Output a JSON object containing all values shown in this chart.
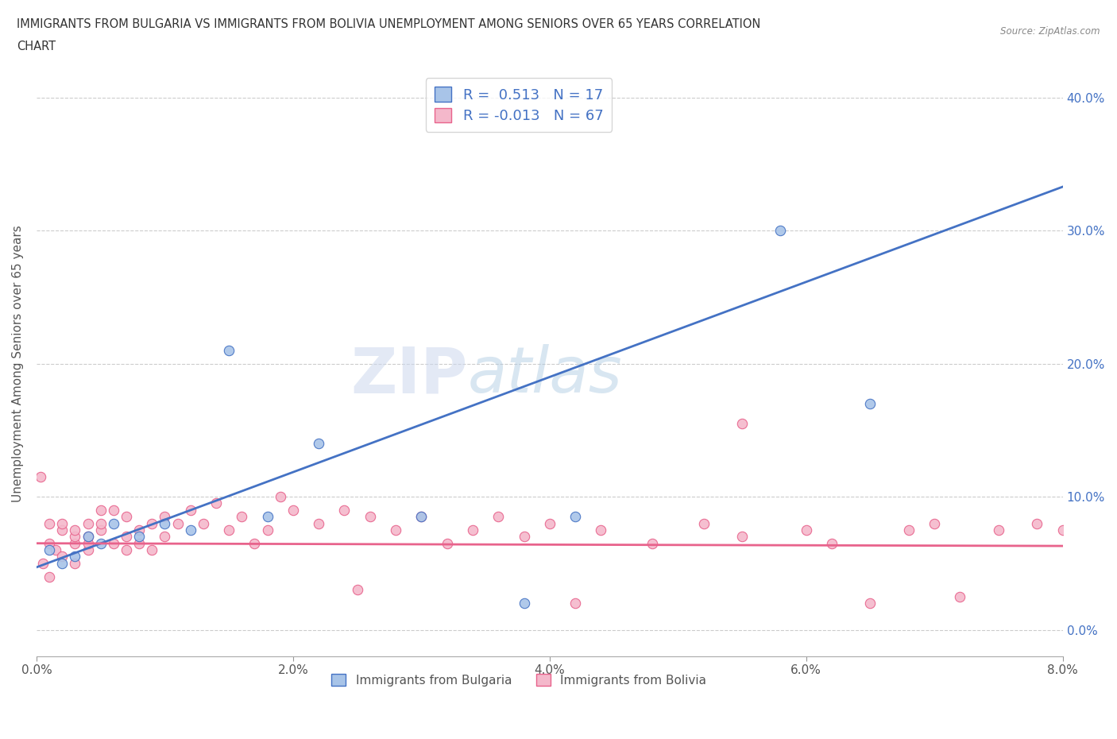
{
  "title_line1": "IMMIGRANTS FROM BULGARIA VS IMMIGRANTS FROM BOLIVIA UNEMPLOYMENT AMONG SENIORS OVER 65 YEARS CORRELATION",
  "title_line2": "CHART",
  "source": "Source: ZipAtlas.com",
  "ylabel": "Unemployment Among Seniors over 65 years",
  "legend_bulgaria": "Immigrants from Bulgaria",
  "legend_bolivia": "Immigrants from Bolivia",
  "R_bulgaria": 0.513,
  "N_bulgaria": 17,
  "R_bolivia": -0.013,
  "N_bolivia": 67,
  "bulgaria_color": "#a8c4e8",
  "bolivia_color": "#f4b8cb",
  "bulgaria_line_color": "#4472c4",
  "bolivia_line_color": "#e8638c",
  "watermark_zip": "ZIP",
  "watermark_atlas": "atlas",
  "xlim": [
    0.0,
    0.08
  ],
  "ylim": [
    -0.02,
    0.42
  ],
  "yticks": [
    0.0,
    0.1,
    0.2,
    0.3,
    0.4
  ],
  "xticks": [
    0.0,
    0.02,
    0.04,
    0.06,
    0.08
  ],
  "bg_line_x0": 0.0,
  "bg_line_y0": 0.047,
  "bg_line_x1": 0.08,
  "bg_line_y1": 0.333,
  "bv_line_x0": 0.0,
  "bv_line_y0": 0.065,
  "bv_line_x1": 0.08,
  "bv_line_y1": 0.063,
  "bulgaria_x": [
    0.001,
    0.002,
    0.003,
    0.004,
    0.005,
    0.006,
    0.008,
    0.01,
    0.012,
    0.015,
    0.018,
    0.022,
    0.03,
    0.038,
    0.042,
    0.058,
    0.065
  ],
  "bulgaria_y": [
    0.06,
    0.05,
    0.055,
    0.07,
    0.065,
    0.08,
    0.07,
    0.08,
    0.075,
    0.21,
    0.085,
    0.14,
    0.085,
    0.02,
    0.085,
    0.3,
    0.17
  ],
  "bolivia_x": [
    0.0003,
    0.0005,
    0.001,
    0.001,
    0.001,
    0.0015,
    0.002,
    0.002,
    0.002,
    0.003,
    0.003,
    0.003,
    0.003,
    0.004,
    0.004,
    0.004,
    0.004,
    0.005,
    0.005,
    0.005,
    0.006,
    0.006,
    0.007,
    0.007,
    0.007,
    0.008,
    0.008,
    0.009,
    0.009,
    0.01,
    0.01,
    0.011,
    0.012,
    0.013,
    0.014,
    0.015,
    0.016,
    0.017,
    0.018,
    0.019,
    0.02,
    0.022,
    0.024,
    0.026,
    0.028,
    0.03,
    0.032,
    0.034,
    0.036,
    0.038,
    0.04,
    0.042,
    0.044,
    0.048,
    0.052,
    0.055,
    0.06,
    0.062,
    0.065,
    0.068,
    0.072,
    0.075,
    0.078,
    0.08,
    0.055,
    0.07,
    0.025
  ],
  "bolivia_y": [
    0.115,
    0.05,
    0.065,
    0.04,
    0.08,
    0.06,
    0.075,
    0.055,
    0.08,
    0.05,
    0.065,
    0.07,
    0.075,
    0.06,
    0.08,
    0.065,
    0.07,
    0.075,
    0.09,
    0.08,
    0.065,
    0.09,
    0.085,
    0.07,
    0.06,
    0.075,
    0.065,
    0.08,
    0.06,
    0.085,
    0.07,
    0.08,
    0.09,
    0.08,
    0.095,
    0.075,
    0.085,
    0.065,
    0.075,
    0.1,
    0.09,
    0.08,
    0.09,
    0.085,
    0.075,
    0.085,
    0.065,
    0.075,
    0.085,
    0.07,
    0.08,
    0.02,
    0.075,
    0.065,
    0.08,
    0.155,
    0.075,
    0.065,
    0.02,
    0.075,
    0.025,
    0.075,
    0.08,
    0.075,
    0.07,
    0.08,
    0.03
  ]
}
